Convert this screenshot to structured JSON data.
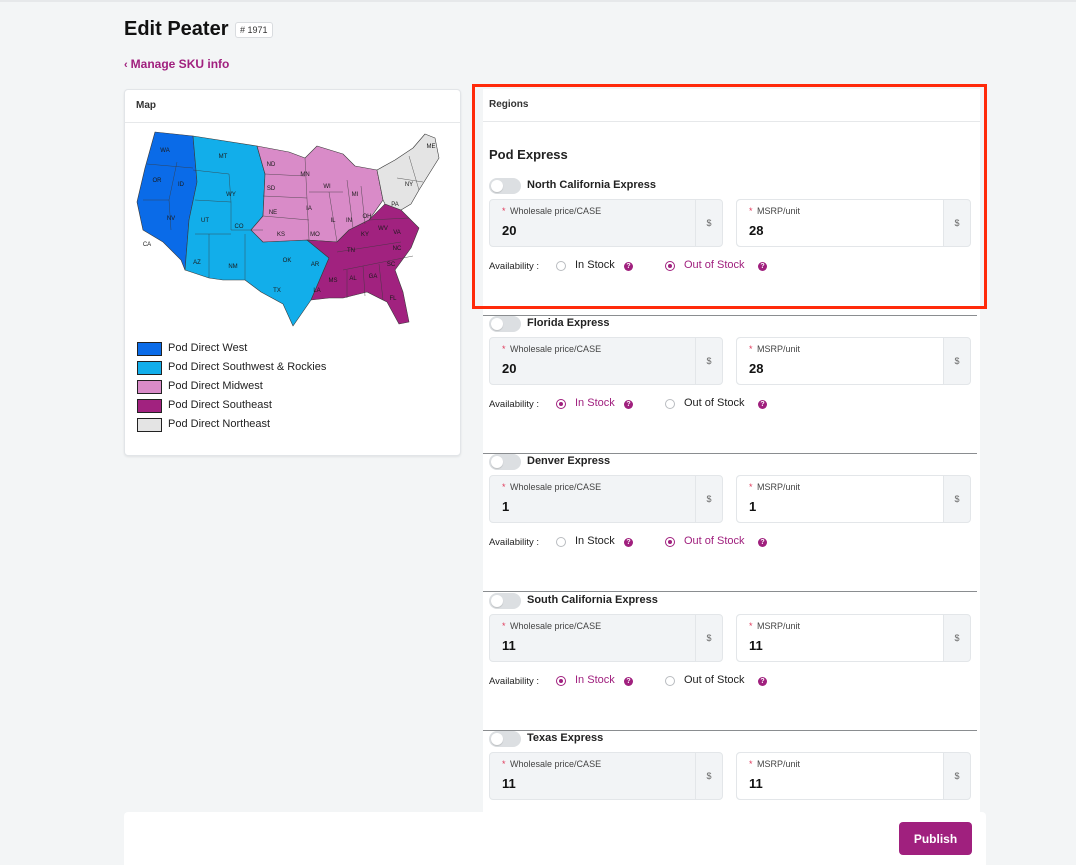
{
  "header": {
    "title": "Edit Peater",
    "sku_number": "# 1971",
    "back_link": "Manage SKU info"
  },
  "map_card": {
    "title": "Map",
    "legend": [
      {
        "label": "Pod Direct West",
        "color": "#0a6be8"
      },
      {
        "label": "Pod Direct Southwest & Rockies",
        "color": "#12aeea"
      },
      {
        "label": "Pod Direct Midwest",
        "color": "#d98bc8"
      },
      {
        "label": "Pod Direct Southeast",
        "color": "#a1227f"
      },
      {
        "label": "Pod Direct Northeast",
        "color": "#e4e4e4"
      }
    ],
    "state_labels": {
      "wa": "WA",
      "or": "OR",
      "ca": "CA",
      "id": "ID",
      "nv": "NV",
      "mt": "MT",
      "wy": "WY",
      "ut": "UT",
      "co": "CO",
      "az": "AZ",
      "nm": "NM",
      "tx": "TX",
      "ok": "OK",
      "nd": "ND",
      "sd": "SD",
      "ne": "NE",
      "ks": "KS",
      "mn": "MN",
      "ia": "IA",
      "mo": "MO",
      "wi": "WI",
      "il": "IL",
      "in": "IN",
      "mi": "MI",
      "oh": "OH",
      "ar": "AR",
      "la": "LA",
      "ms": "MS",
      "al": "AL",
      "ga": "GA",
      "fl": "FL",
      "sc": "SC",
      "nc": "NC",
      "tn": "TN",
      "ky": "KY",
      "va": "VA",
      "wv": "WV",
      "pa": "PA",
      "ny": "NY",
      "me": "ME"
    }
  },
  "regions_card": {
    "title": "Regions",
    "group_title": "Pod Express",
    "wholesale_label": "Wholesale price/CASE",
    "msrp_label": "MSRP/unit",
    "required_mark": "*",
    "currency": "$",
    "availability_label": "Availability :",
    "in_stock_label": "In Stock",
    "out_of_stock_label": "Out of Stock",
    "help_glyph": "?",
    "regions": [
      {
        "name": "North California Express",
        "wholesale": "20",
        "msrp": "28",
        "availability": "out_of_stock"
      },
      {
        "name": "Florida Express",
        "wholesale": "20",
        "msrp": "28",
        "availability": "in_stock"
      },
      {
        "name": "Denver Express",
        "wholesale": "1",
        "msrp": "1",
        "availability": "out_of_stock"
      },
      {
        "name": "South California Express",
        "wholesale": "11",
        "msrp": "11",
        "availability": "in_stock"
      },
      {
        "name": "Texas Express",
        "wholesale": "11",
        "msrp": "11",
        "availability": "in_stock"
      }
    ]
  },
  "footer": {
    "publish_label": "Publish"
  },
  "colors": {
    "accent": "#a0207e",
    "highlight": "#ff2a0a"
  }
}
